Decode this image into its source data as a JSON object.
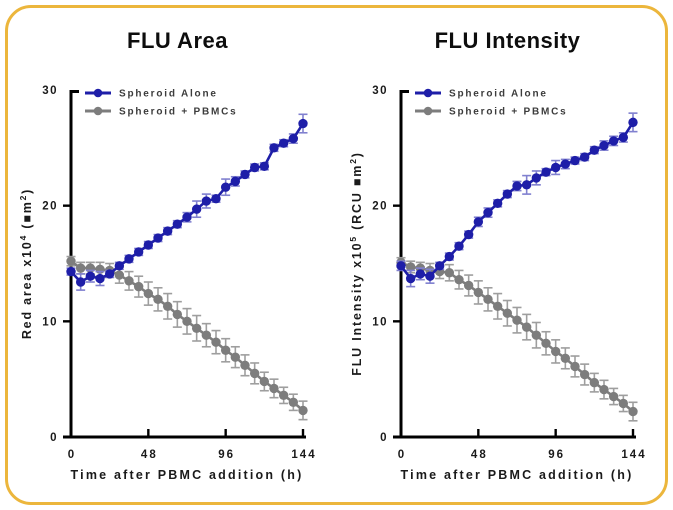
{
  "frame": {
    "border_color": "#ecb63c",
    "background": "#ffffff"
  },
  "colors": {
    "axis": "#000000",
    "tick_label": "#1a1a1a",
    "legend_text": "#3c3c3c",
    "blue_series": "#1e1ea8",
    "blue_error": "#8080cf",
    "gray_series": "#7d7d7d",
    "gray_error": "#9e9e9e"
  },
  "chart_data": [
    {
      "type": "line",
      "title": "FLU Area",
      "xlabel": "Time after PBMC addition (h)",
      "ylabel_parts": [
        {
          "t": "Red area x10"
        },
        {
          "t": "4",
          "sup": true
        },
        {
          "t": " ("
        },
        {
          "t": "■m"
        },
        {
          "t": "2",
          "sup": true
        },
        {
          "t": ")"
        }
      ],
      "xlim": [
        0,
        144
      ],
      "ylim": [
        0,
        30
      ],
      "xticks": [
        "0",
        "48",
        "96",
        "144"
      ],
      "yticks": [
        "0",
        "10",
        "20",
        "30"
      ],
      "grid": false,
      "legend_position": "top-left-inside",
      "x": [
        0,
        6,
        12,
        18,
        24,
        30,
        36,
        42,
        48,
        54,
        60,
        66,
        72,
        78,
        84,
        90,
        96,
        102,
        108,
        114,
        120,
        126,
        132,
        138,
        144
      ],
      "series": [
        {
          "name": "Spheroid Alone",
          "color": "#1e1ea8",
          "err_color": "#8080cf",
          "values": [
            14.3,
            13.4,
            13.9,
            13.7,
            14.1,
            14.8,
            15.4,
            16.0,
            16.6,
            17.2,
            17.8,
            18.4,
            19.0,
            19.7,
            20.4,
            20.6,
            21.6,
            22.1,
            22.7,
            23.3,
            23.4,
            25.0,
            25.4,
            25.8,
            27.1
          ],
          "errors": [
            0.3,
            0.7,
            0.5,
            0.6,
            0.3,
            0.3,
            0.3,
            0.3,
            0.3,
            0.3,
            0.3,
            0.3,
            0.4,
            0.7,
            0.6,
            0.3,
            0.7,
            0.4,
            0.3,
            0.3,
            0.3,
            0.3,
            0.3,
            0.4,
            0.8
          ]
        },
        {
          "name": "Spheroid + PBMCs",
          "color": "#7d7d7d",
          "err_color": "#9e9e9e",
          "values": [
            15.2,
            14.6,
            14.6,
            14.5,
            14.4,
            14.0,
            13.5,
            13.0,
            12.4,
            11.9,
            11.3,
            10.6,
            10.0,
            9.4,
            8.8,
            8.2,
            7.5,
            6.9,
            6.2,
            5.5,
            4.8,
            4.2,
            3.6,
            3.0,
            2.3
          ],
          "errors": [
            0.4,
            0.5,
            0.5,
            0.6,
            0.6,
            0.7,
            0.8,
            0.9,
            1.0,
            1.0,
            1.1,
            1.1,
            1.1,
            1.1,
            1.0,
            1.0,
            1.0,
            0.9,
            0.9,
            0.9,
            0.8,
            0.8,
            0.7,
            0.7,
            0.8
          ]
        }
      ]
    },
    {
      "type": "line",
      "title": "FLU Intensity",
      "xlabel": "Time after PBMC addition (h)",
      "ylabel_parts": [
        {
          "t": "FLU Intensity x10"
        },
        {
          "t": "5",
          "sup": true
        },
        {
          "t": " (RCU "
        },
        {
          "t": "■m"
        },
        {
          "t": "2",
          "sup": true
        },
        {
          "t": ")"
        }
      ],
      "xlim": [
        0,
        144
      ],
      "ylim": [
        0,
        30
      ],
      "xticks": [
        "0",
        "48",
        "96",
        "144"
      ],
      "yticks": [
        "0",
        "10",
        "20",
        "30"
      ],
      "grid": false,
      "legend_position": "top-left-inside",
      "x": [
        0,
        6,
        12,
        18,
        24,
        30,
        36,
        42,
        48,
        54,
        60,
        66,
        72,
        78,
        84,
        90,
        96,
        102,
        108,
        114,
        120,
        126,
        132,
        138,
        144
      ],
      "series": [
        {
          "name": "Spheroid Alone",
          "color": "#1e1ea8",
          "err_color": "#8080cf",
          "values": [
            14.8,
            13.7,
            14.1,
            13.9,
            14.8,
            15.6,
            16.5,
            17.5,
            18.6,
            19.4,
            20.2,
            21.0,
            21.7,
            21.8,
            22.4,
            22.9,
            23.3,
            23.6,
            23.9,
            24.2,
            24.8,
            25.2,
            25.6,
            25.9,
            27.2
          ],
          "errors": [
            0.4,
            0.7,
            0.5,
            0.6,
            0.3,
            0.3,
            0.3,
            0.3,
            0.4,
            0.4,
            0.3,
            0.3,
            0.4,
            0.8,
            0.6,
            0.3,
            0.6,
            0.4,
            0.3,
            0.3,
            0.3,
            0.4,
            0.4,
            0.4,
            0.8
          ]
        },
        {
          "name": "Spheroid + PBMCs",
          "color": "#7d7d7d",
          "err_color": "#9e9e9e",
          "values": [
            15.1,
            14.7,
            14.6,
            14.4,
            14.3,
            14.2,
            13.6,
            13.1,
            12.5,
            11.9,
            11.3,
            10.7,
            10.1,
            9.5,
            8.8,
            8.1,
            7.4,
            6.8,
            6.1,
            5.4,
            4.7,
            4.1,
            3.5,
            2.9,
            2.2
          ],
          "errors": [
            0.4,
            0.5,
            0.5,
            0.6,
            0.6,
            0.7,
            0.8,
            0.9,
            1.0,
            1.0,
            1.1,
            1.1,
            1.1,
            1.1,
            1.1,
            1.0,
            1.0,
            0.9,
            0.9,
            0.9,
            0.8,
            0.8,
            0.7,
            0.7,
            0.8
          ]
        }
      ]
    }
  ]
}
